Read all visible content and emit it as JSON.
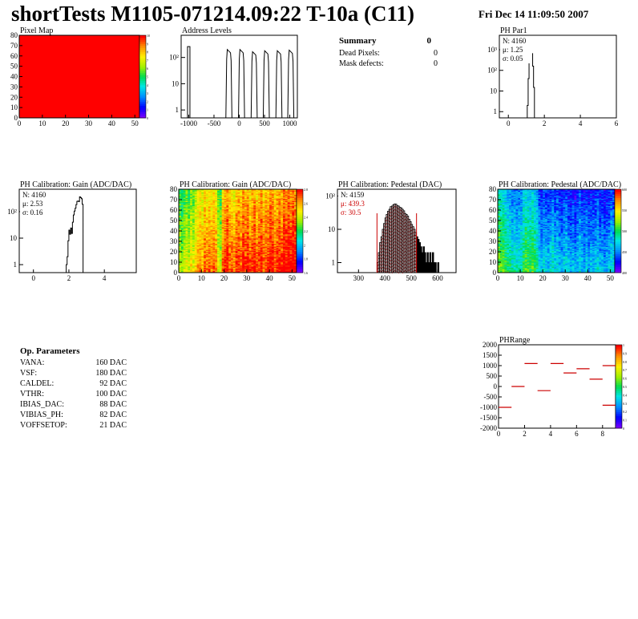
{
  "title": "shortTests M1105-071214.09:22 T-10a (C11)",
  "date": "Fri Dec 14 11:09:50 2007",
  "summary": {
    "heading": "Summary",
    "heading_value": "0",
    "rows": [
      {
        "label": "Dead Pixels:",
        "value": "0"
      },
      {
        "label": "Mask defects:",
        "value": "0"
      }
    ]
  },
  "op_parameters": {
    "heading": "Op. Parameters",
    "rows": [
      {
        "label": "VANA:",
        "value": "160 DAC"
      },
      {
        "label": "VSF:",
        "value": "180 DAC"
      },
      {
        "label": "CALDEL:",
        "value": "92 DAC"
      },
      {
        "label": "VTHR:",
        "value": "100 DAC"
      },
      {
        "label": "IBIAS_DAC:",
        "value": "88 DAC"
      },
      {
        "label": "VIBIAS_PH:",
        "value": "82 DAC"
      },
      {
        "label": "VOFFSETOP:",
        "value": "21 DAC"
      }
    ]
  },
  "chart_data": [
    {
      "id": "pixel-map",
      "type": "heatmap",
      "title": "Pixel Map",
      "xlim": [
        0,
        52
      ],
      "ylim": [
        0,
        80
      ],
      "xticks": [
        "0",
        "10",
        "20",
        "30",
        "40",
        "50"
      ],
      "yticks": [
        "0",
        "10",
        "20",
        "30",
        "40",
        "50",
        "60",
        "70",
        "80"
      ],
      "uniform_value": 10,
      "zlim": [
        0,
        10
      ],
      "zticks": [
        "0",
        "1",
        "2",
        "3",
        "4",
        "5",
        "6",
        "7",
        "8",
        "9",
        "10"
      ],
      "fill_color": "#ff0000"
    },
    {
      "id": "address-levels",
      "type": "line",
      "title": "Address Levels",
      "xlim": [
        -1150,
        1150
      ],
      "ylog": true,
      "ylim": [
        0.5,
        700
      ],
      "xticks": [
        "-1000",
        "-500",
        "0",
        "500",
        "1000"
      ],
      "yticks": [
        "1",
        "10",
        "10²"
      ],
      "peaks": [
        {
          "x": -1000,
          "height": 260,
          "shape": "narrow"
        },
        {
          "x": -205,
          "height": 200
        },
        {
          "x": 45,
          "height": 200
        },
        {
          "x": 295,
          "height": 165
        },
        {
          "x": 535,
          "height": 180
        },
        {
          "x": 785,
          "height": 180
        },
        {
          "x": 1020,
          "height": 190
        }
      ]
    },
    {
      "id": "ph-par1",
      "type": "line",
      "title": "PH Par1",
      "xlim": [
        -0.5,
        6
      ],
      "ylog": true,
      "ylim": [
        0.5,
        5000
      ],
      "xticks": [
        "0",
        "2",
        "4",
        "6"
      ],
      "yticks": [
        "1",
        "10",
        "10²",
        "10³"
      ],
      "stats": [
        {
          "label": "N:",
          "value": "4160"
        },
        {
          "label": "μ:",
          "value": "1.25"
        },
        {
          "label": "σ:",
          "value": "0.05"
        }
      ],
      "bins": [
        [
          1.0,
          0.5
        ],
        [
          1.05,
          2
        ],
        [
          1.1,
          40
        ],
        [
          1.15,
          400
        ],
        [
          1.2,
          1300
        ],
        [
          1.25,
          1500
        ],
        [
          1.3,
          650
        ],
        [
          1.35,
          160
        ],
        [
          1.4,
          15
        ],
        [
          1.45,
          0.5
        ]
      ]
    },
    {
      "id": "gain-1d",
      "type": "line",
      "title": "PH Calibration: Gain (ADC/DAC)",
      "xlim": [
        -0.8,
        5.8
      ],
      "ylog": true,
      "ylim": [
        0.5,
        700
      ],
      "xticks": [
        "0",
        "2",
        "4"
      ],
      "yticks": [
        "1",
        "10",
        "10²"
      ],
      "stats": [
        {
          "label": "N:",
          "value": "4160"
        },
        {
          "label": "μ:",
          "value": "2.53"
        },
        {
          "label": "σ:",
          "value": "0.16"
        }
      ],
      "bins": [
        [
          1.8,
          0.5
        ],
        [
          1.85,
          1
        ],
        [
          1.9,
          2
        ],
        [
          1.95,
          8
        ],
        [
          2.0,
          20
        ],
        [
          2.05,
          14
        ],
        [
          2.1,
          24
        ],
        [
          2.15,
          15
        ],
        [
          2.2,
          40
        ],
        [
          2.25,
          75
        ],
        [
          2.3,
          105
        ],
        [
          2.35,
          135
        ],
        [
          2.4,
          185
        ],
        [
          2.45,
          245
        ],
        [
          2.5,
          250
        ],
        [
          2.55,
          240
        ],
        [
          2.6,
          360
        ],
        [
          2.65,
          340
        ],
        [
          2.7,
          310
        ],
        [
          2.75,
          190
        ],
        [
          2.8,
          0.5
        ]
      ]
    },
    {
      "id": "gain-map",
      "type": "heatmap",
      "title": "PH Calibration: Gain (ADC/DAC)",
      "xlim": [
        0,
        52
      ],
      "ylim": [
        0,
        80
      ],
      "xticks": [
        "0",
        "10",
        "20",
        "30",
        "40",
        "50"
      ],
      "yticks": [
        "0",
        "10",
        "20",
        "30",
        "40",
        "50",
        "60",
        "70",
        "80"
      ],
      "zlim": [
        1.6,
        2.8
      ],
      "zticks": [
        "1.6",
        "1.8",
        "2",
        "2.2",
        "2.4",
        "2.6",
        "2.8"
      ],
      "col_means": [
        2.3,
        2.25,
        2.3,
        2.35,
        2.3,
        2.4,
        2.35,
        2.45,
        2.5,
        2.55,
        2.5,
        2.6,
        2.55,
        2.6,
        2.55,
        2.6,
        2.55,
        2.35,
        2.3,
        2.6,
        2.65,
        2.7,
        2.6,
        2.6,
        2.55,
        2.65,
        2.65,
        2.6,
        2.7,
        2.65,
        2.7,
        2.6,
        2.65,
        2.7,
        2.6,
        2.65,
        2.7,
        2.6,
        2.65,
        2.65,
        2.7,
        2.7,
        2.6,
        2.65,
        2.7,
        2.65,
        2.75,
        2.7,
        2.75,
        2.7,
        2.75,
        2.7
      ],
      "row_trend": [
        0.12,
        -0.08
      ]
    },
    {
      "id": "pedestal-1d",
      "type": "bar",
      "title": "PH Calibration: Pedestal (DAC)",
      "xlim": [
        220,
        670
      ],
      "ylog": true,
      "ylim": [
        0.5,
        160
      ],
      "xticks": [
        "300",
        "400",
        "500",
        "600"
      ],
      "yticks": [
        "1",
        "10",
        "10²"
      ],
      "stats": [
        {
          "label": "N:",
          "value": "4159"
        },
        {
          "label": "μ:",
          "value": "439.3"
        },
        {
          "label": "σ:",
          "value": "30.5"
        }
      ],
      "stat_colors": [
        "#000000",
        "#cc0000",
        "#cc0000"
      ],
      "fit_range": [
        370,
        520
      ],
      "bins": [
        [
          370,
          1
        ],
        [
          375,
          2
        ],
        [
          380,
          4
        ],
        [
          385,
          6
        ],
        [
          390,
          10
        ],
        [
          395,
          15
        ],
        [
          400,
          22
        ],
        [
          405,
          28
        ],
        [
          410,
          35
        ],
        [
          415,
          40
        ],
        [
          420,
          48
        ],
        [
          425,
          50
        ],
        [
          430,
          55
        ],
        [
          435,
          58
        ],
        [
          440,
          57
        ],
        [
          445,
          52
        ],
        [
          450,
          50
        ],
        [
          455,
          46
        ],
        [
          460,
          44
        ],
        [
          465,
          40
        ],
        [
          470,
          36
        ],
        [
          475,
          30
        ],
        [
          480,
          28
        ],
        [
          485,
          25
        ],
        [
          490,
          20
        ],
        [
          495,
          17
        ],
        [
          500,
          14
        ],
        [
          505,
          12
        ],
        [
          510,
          10
        ],
        [
          515,
          8
        ],
        [
          520,
          6
        ],
        [
          525,
          5
        ],
        [
          530,
          4
        ],
        [
          535,
          3
        ],
        [
          540,
          2
        ],
        [
          545,
          3
        ],
        [
          550,
          2
        ],
        [
          555,
          1
        ],
        [
          560,
          2
        ],
        [
          565,
          1
        ],
        [
          570,
          2
        ],
        [
          575,
          1
        ],
        [
          580,
          2
        ],
        [
          585,
          1
        ],
        [
          590,
          1
        ],
        [
          600,
          1
        ]
      ]
    },
    {
      "id": "pedestal-map",
      "type": "heatmap",
      "title": "PH Calibration: Pedestal (ADC/DAC)",
      "xlim": [
        0,
        52
      ],
      "ylim": [
        0,
        80
      ],
      "xticks": [
        "0",
        "10",
        "20",
        "30",
        "40",
        "50"
      ],
      "yticks": [
        "0",
        "10",
        "20",
        "30",
        "40",
        "50",
        "60",
        "70",
        "80"
      ],
      "zlim": [
        380,
        600
      ],
      "zticks": [
        "400",
        "450",
        "500",
        "550",
        "600"
      ],
      "col_means": [
        490,
        485,
        480,
        470,
        465,
        460,
        450,
        455,
        445,
        450,
        455,
        470,
        480,
        475,
        470,
        480,
        470,
        460,
        440,
        430,
        440,
        435,
        430,
        440,
        450,
        435,
        440,
        430,
        425,
        435,
        440,
        430,
        425,
        430,
        420,
        430,
        440,
        430,
        425,
        435,
        420,
        430,
        425,
        430,
        440,
        425,
        430,
        420,
        425,
        430,
        440,
        435
      ],
      "row_trend": [
        25,
        -20
      ]
    },
    {
      "id": "ph-range",
      "type": "scatter",
      "title": "PHRange",
      "xlim": [
        0,
        9
      ],
      "ylim": [
        -2000,
        2000
      ],
      "xticks": [
        "0",
        "2",
        "4",
        "6",
        "8"
      ],
      "yticks": [
        "-2000",
        "-1500",
        "-1000",
        "-500",
        "0",
        "500",
        "1000",
        "1500",
        "2000"
      ],
      "zticks": [
        "0",
        "0.1",
        "0.2",
        "0.3",
        "0.4",
        "0.5",
        "0.6",
        "0.7",
        "0.8",
        "0.9",
        "1"
      ],
      "segments": [
        [
          0,
          1,
          -1000
        ],
        [
          1,
          2,
          0
        ],
        [
          2,
          3,
          1100
        ],
        [
          3,
          4,
          -200
        ],
        [
          4,
          5,
          1100
        ],
        [
          5,
          6,
          650
        ],
        [
          6,
          7,
          850
        ],
        [
          7,
          8,
          350
        ],
        [
          8,
          9,
          1000
        ],
        [
          8,
          9,
          -900
        ]
      ]
    }
  ]
}
